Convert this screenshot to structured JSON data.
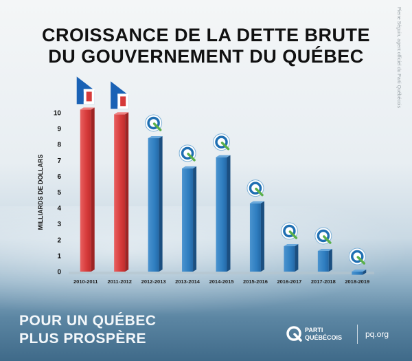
{
  "header": {
    "title_line1": "CROISSANCE DE LA DETTE BRUTE",
    "title_line2": "DU GOUVERNEMENT DU QUÉBEC"
  },
  "credit": "Pierre Séguin, agent officiel du Parti Québécois",
  "footer": {
    "tagline_line1": "POUR UN QUÉBEC",
    "tagline_line2": "PLUS PROSPÈRE",
    "brand_line1": "PARTI",
    "brand_line2": "QUÉBÉCOIS",
    "url": "pq.org"
  },
  "colors": {
    "liberal": "#e04848",
    "pq": "#2f7ec0",
    "ground": "#cfd9df"
  },
  "chart_data": {
    "type": "bar",
    "title": "",
    "xlabel": "",
    "ylabel": "MILLIARDS DE DOLLARS",
    "ylim": [
      0,
      10
    ],
    "yticks": [
      0,
      1,
      2,
      3,
      4,
      5,
      6,
      7,
      8,
      9,
      10
    ],
    "categories": [
      "2010-2011",
      "2011-2012",
      "2012-2013",
      "2013-2014",
      "2014-2015",
      "2015-2016",
      "2016-2017",
      "2017-2018",
      "2018-2019"
    ],
    "values": [
      10.2,
      9.9,
      8.4,
      6.5,
      7.2,
      4.3,
      1.6,
      1.3,
      -0.2
    ],
    "bar_parties": [
      "liberal",
      "liberal",
      "pq",
      "pq",
      "pq",
      "pq",
      "pq",
      "pq",
      "pq"
    ],
    "icons": [
      "liberal-logo-icon",
      "liberal-logo-icon",
      "pq-logo-icon",
      "pq-logo-icon",
      "pq-logo-icon",
      "pq-logo-icon",
      "pq-logo-icon",
      "pq-logo-icon",
      "pq-logo-icon"
    ],
    "grid": false,
    "legend": "none"
  }
}
